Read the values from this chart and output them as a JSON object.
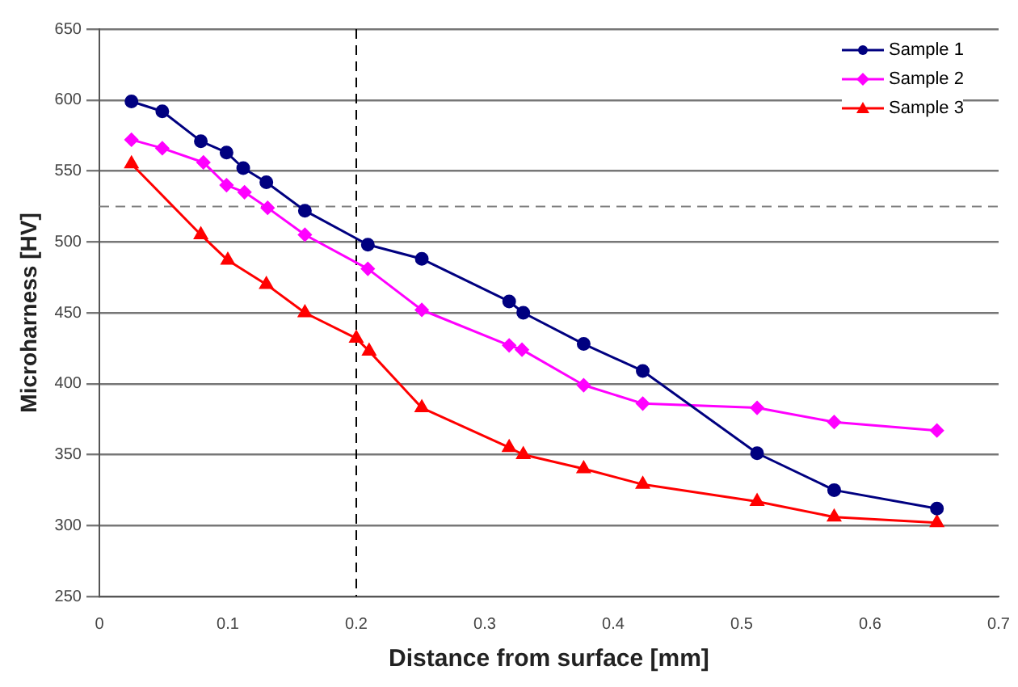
{
  "chart_data": {
    "type": "line",
    "xlabel": "Distance from surface [mm]",
    "ylabel": "Microharness [HV]",
    "xlim": [
      0,
      0.7
    ],
    "xticks": [
      0,
      0.1,
      0.2,
      0.3,
      0.4,
      0.5,
      0.6,
      0.7
    ],
    "ylim": [
      250,
      650
    ],
    "yticks": [
      250,
      300,
      350,
      400,
      450,
      500,
      550,
      600,
      650
    ],
    "grid": "y",
    "legend": "top right",
    "line_style": "solid",
    "ref_lines": [
      {
        "axis": "x",
        "value": 0.2,
        "line_style": "dashed",
        "color": "#000000"
      },
      {
        "axis": "y",
        "value": 525,
        "line_style": "dashed",
        "color": "#808080"
      }
    ],
    "series": [
      {
        "name": "Sample 1",
        "color": "#000080",
        "marker": "circle",
        "x": [
          0.025,
          0.049,
          0.079,
          0.099,
          0.112,
          0.13,
          0.16,
          0.209,
          0.251,
          0.319,
          0.33,
          0.377,
          0.423,
          0.512,
          0.572,
          0.652
        ],
        "values": [
          599,
          592,
          571,
          563,
          552,
          542,
          522,
          498,
          488,
          458,
          450,
          428,
          409,
          351,
          325,
          312
        ]
      },
      {
        "name": "Sample 2",
        "color": "#ff00ff",
        "marker": "diamond",
        "x": [
          0.025,
          0.049,
          0.081,
          0.099,
          0.113,
          0.131,
          0.16,
          0.209,
          0.251,
          0.319,
          0.329,
          0.377,
          0.423,
          0.512,
          0.572,
          0.652
        ],
        "values": [
          572,
          566,
          556,
          540,
          535,
          524,
          505,
          481,
          452,
          427,
          424,
          399,
          386,
          383,
          373,
          367
        ]
      },
      {
        "name": "Sample 3",
        "color": "#ff0000",
        "marker": "triangle",
        "x": [
          0.025,
          0.079,
          0.1,
          0.13,
          0.16,
          0.2,
          0.21,
          0.251,
          0.319,
          0.33,
          0.377,
          0.423,
          0.512,
          0.572,
          0.652
        ],
        "values": [
          555,
          505,
          487,
          470,
          450,
          432,
          423,
          383,
          355,
          350,
          340,
          329,
          317,
          306,
          302
        ]
      }
    ]
  }
}
